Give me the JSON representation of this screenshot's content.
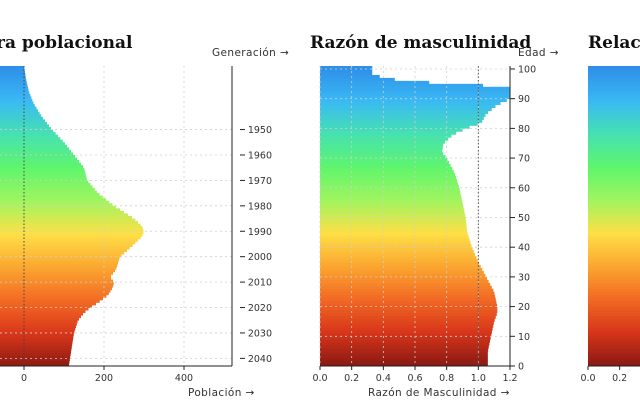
{
  "page": {
    "titles": [
      "ra poblacional",
      "Razón de masculinidad",
      "Relac"
    ]
  },
  "chart_data": [
    {
      "type": "area",
      "title": "ra poblacional",
      "xlabel": "Población →",
      "ylabel_right": "Generación →",
      "x_ticks": [
        0,
        200,
        400
      ],
      "xlim": [
        -60,
        520
      ],
      "y_ticks": [
        1950,
        1960,
        1970,
        1980,
        1990,
        2000,
        2010,
        2020,
        2030,
        2040
      ],
      "profile": {
        "generation": [
          1925,
          1930,
          1935,
          1940,
          1945,
          1950,
          1955,
          1960,
          1965,
          1970,
          1975,
          1980,
          1985,
          1988,
          1990,
          1992,
          1995,
          2000,
          2005,
          2008,
          2010,
          2012,
          2015,
          2018,
          2020,
          2022,
          2025,
          2030,
          2035,
          2040,
          2043
        ],
        "population": [
          0,
          5,
          12,
          25,
          45,
          70,
          100,
          125,
          150,
          158,
          185,
          225,
          275,
          295,
          300,
          295,
          275,
          240,
          230,
          215,
          225,
          222,
          210,
          185,
          165,
          150,
          135,
          125,
          120,
          115,
          112
        ]
      }
    },
    {
      "type": "area",
      "title": "Razón de masculinidad",
      "xlabel": "Razón de Masculinidad →",
      "ylabel_right": "Edad →",
      "x_ticks": [
        0.0,
        0.2,
        0.4,
        0.6,
        0.8,
        1.0,
        1.2
      ],
      "xlim": [
        0,
        1.2
      ],
      "y_ticks": [
        0,
        10,
        20,
        30,
        40,
        50,
        60,
        70,
        80,
        90,
        100
      ],
      "ylim": [
        0,
        101
      ],
      "reference_line": 1.0,
      "profile": {
        "age": [
          0,
          5,
          10,
          15,
          18,
          20,
          25,
          30,
          35,
          40,
          45,
          50,
          55,
          60,
          65,
          70,
          72,
          75,
          78,
          80,
          82,
          85,
          88,
          90,
          92,
          94,
          96,
          98,
          100
        ],
        "ratio": [
          1.06,
          1.06,
          1.08,
          1.1,
          1.12,
          1.12,
          1.1,
          1.05,
          1.0,
          0.96,
          0.93,
          0.92,
          0.9,
          0.88,
          0.85,
          0.8,
          0.77,
          0.78,
          0.84,
          0.92,
          1.02,
          1.05,
          1.12,
          1.2,
          1.2,
          1.2,
          0.52,
          0.33,
          0.33
        ]
      }
    },
    {
      "type": "area",
      "title": "Relac",
      "x_ticks": [
        0.0,
        0.2
      ],
      "xlim": [
        0,
        1.2
      ],
      "ylim": [
        0,
        101
      ]
    }
  ],
  "palette": {
    "stops": [
      "#8b1a13",
      "#d8361a",
      "#f26a24",
      "#fba730",
      "#fde047",
      "#9ff55f",
      "#5ef56e",
      "#46e1b2",
      "#39b9f4",
      "#2f8fe8"
    ],
    "grid": "#cfcfcf",
    "axis": "#222222"
  }
}
